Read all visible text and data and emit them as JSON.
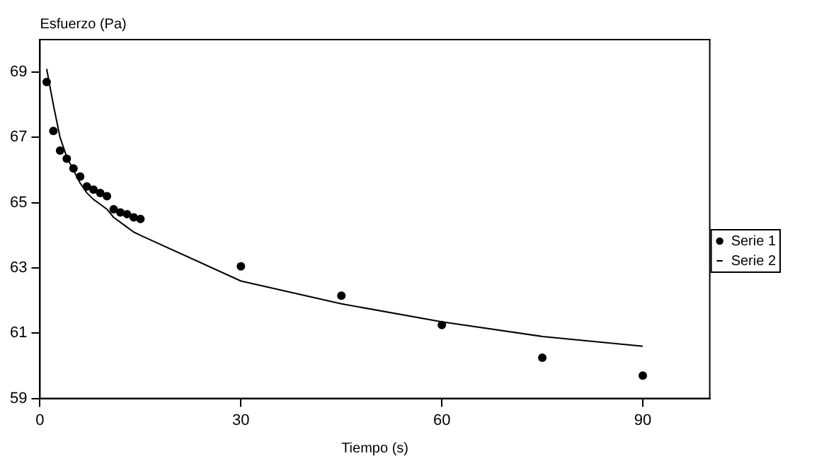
{
  "chart_data": {
    "type": "scatter",
    "xlabel": "Tiempo (s)",
    "ylabel": "Esfuerzo (Pa)",
    "xlim": [
      0,
      100
    ],
    "xticks": [
      0,
      30,
      60,
      90
    ],
    "ylim": [
      59,
      70
    ],
    "yticks": [
      59,
      61,
      63,
      65,
      67,
      69
    ],
    "grid": false,
    "legend": "right",
    "series": [
      {
        "name": "Serie 1",
        "color": "#000000",
        "marker": "circle",
        "x": [
          1,
          2,
          3,
          4,
          5,
          6,
          7,
          8,
          9,
          10,
          11,
          12,
          13,
          14,
          15,
          30,
          45,
          60,
          75,
          90
        ],
        "values": [
          68.7,
          67.2,
          66.6,
          66.35,
          66.05,
          65.8,
          65.5,
          65.4,
          65.3,
          65.2,
          64.8,
          64.7,
          64.65,
          64.55,
          64.5,
          63.05,
          62.15,
          61.25,
          60.25,
          59.7
        ]
      },
      {
        "name": "Serie 2",
        "type": "line",
        "color": "#000000",
        "marker": "none",
        "line_style": "solid",
        "x": [
          1,
          2,
          3,
          4,
          5,
          6,
          7,
          8,
          9,
          10,
          11,
          12,
          13,
          14,
          15,
          30,
          45,
          60,
          75,
          90
        ],
        "values": [
          69.1,
          68.0,
          67.0,
          66.4,
          66.0,
          65.6,
          65.3,
          65.1,
          64.95,
          64.8,
          64.55,
          64.4,
          64.25,
          64.1,
          64.0,
          62.6,
          61.9,
          61.35,
          60.9,
          60.6
        ]
      }
    ]
  }
}
